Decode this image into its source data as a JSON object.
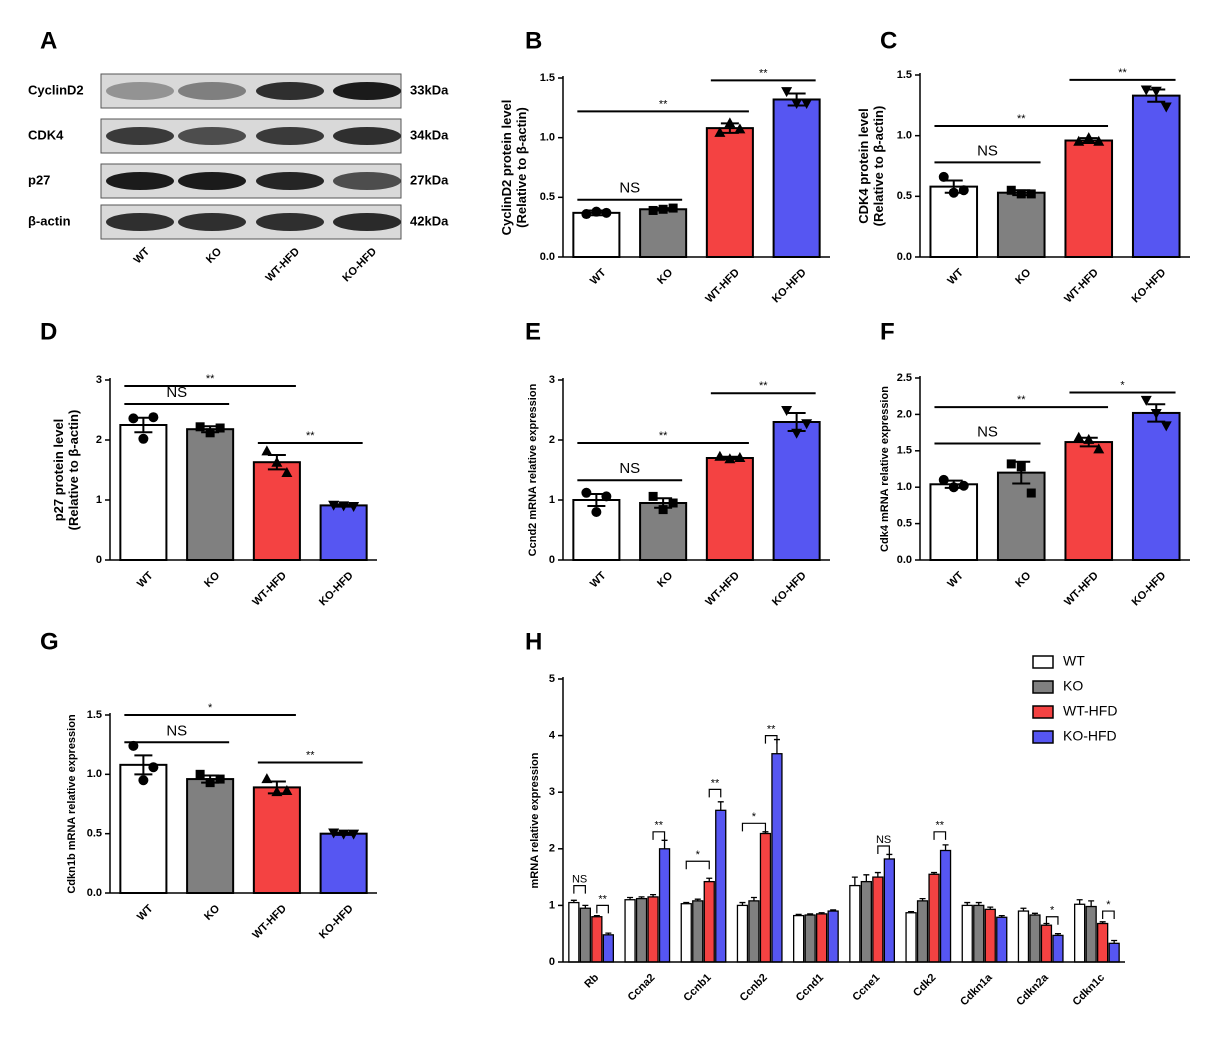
{
  "blot": {
    "panel": "A",
    "rows": [
      "CyclinD2",
      "CDK4",
      "p27",
      "β-actin"
    ],
    "sizes": [
      "33kDa",
      "34kDa",
      "27kDa",
      "42kDa"
    ],
    "lanes": [
      "WT",
      "KO",
      "WT-HFD",
      "KO-HFD"
    ]
  },
  "chart_data": [
    {
      "type": "bar",
      "panel": "B",
      "ylabel": [
        "CyclinD2 protein level",
        "(Relative to β-actin)"
      ],
      "categories": [
        "WT",
        "KO",
        "WT-HFD",
        "KO-HFD"
      ],
      "colors": [
        "#ffffff",
        "#808080",
        "#f44242",
        "#5656f2"
      ],
      "markers": [
        "circle",
        "square",
        "triangle",
        "triangle-down"
      ],
      "values": [
        0.37,
        0.4,
        1.08,
        1.32
      ],
      "errors": [
        0.02,
        0.01,
        0.04,
        0.05
      ],
      "points": [
        [
          0.36,
          0.38,
          0.37
        ],
        [
          0.39,
          0.4,
          0.41
        ],
        [
          1.04,
          1.12,
          1.07
        ],
        [
          1.39,
          1.29,
          1.29
        ]
      ],
      "ylim": [
        0,
        1.5
      ],
      "yticks": [
        {
          "value": 0,
          "label": "0.0"
        },
        0.5,
        {
          "value": 1,
          "label": "1.0"
        },
        1.5
      ],
      "annotations": [
        {
          "label": "NS",
          "from": 0,
          "to": 1,
          "y": 0.48
        },
        {
          "label": "**",
          "from": 0,
          "to": 2,
          "y": 1.22
        },
        {
          "label": "**",
          "from": 2,
          "to": 3,
          "y": 1.48
        }
      ]
    },
    {
      "type": "bar",
      "panel": "C",
      "ylabel": [
        "CDK4 protein level",
        "(Relative to β-actin)"
      ],
      "categories": [
        "WT",
        "KO",
        "WT-HFD",
        "KO-HFD"
      ],
      "colors": [
        "#ffffff",
        "#808080",
        "#f44242",
        "#5656f2"
      ],
      "markers": [
        "circle",
        "square",
        "triangle",
        "triangle-down"
      ],
      "values": [
        0.58,
        0.53,
        0.96,
        1.33
      ],
      "errors": [
        0.05,
        0.02,
        0.02,
        0.05
      ],
      "points": [
        [
          0.66,
          0.53,
          0.55
        ],
        [
          0.55,
          0.52,
          0.52
        ],
        [
          0.95,
          0.98,
          0.95
        ],
        [
          1.38,
          1.37,
          1.24
        ]
      ],
      "ylim": [
        0,
        1.5
      ],
      "yticks": [
        {
          "value": 0,
          "label": "0.0"
        },
        0.5,
        {
          "value": 1,
          "label": "1.0"
        },
        1.5
      ],
      "annotations": [
        {
          "label": "NS",
          "from": 0,
          "to": 1,
          "y": 0.78
        },
        {
          "label": "**",
          "from": 0,
          "to": 2,
          "y": 1.08
        },
        {
          "label": "**",
          "from": 2,
          "to": 3,
          "y": 1.46
        }
      ]
    },
    {
      "type": "bar",
      "panel": "D",
      "ylabel": [
        "p27 protein level",
        "(Relative to β-actin)"
      ],
      "categories": [
        "WT",
        "KO",
        "WT-HFD",
        "KO-HFD"
      ],
      "colors": [
        "#ffffff",
        "#808080",
        "#f44242",
        "#5656f2"
      ],
      "markers": [
        "circle",
        "square",
        "triangle",
        "triangle-down"
      ],
      "values": [
        2.25,
        2.18,
        1.63,
        0.91
      ],
      "errors": [
        0.12,
        0.05,
        0.12,
        0.02
      ],
      "points": [
        [
          2.36,
          2.02,
          2.38
        ],
        [
          2.22,
          2.12,
          2.2
        ],
        [
          1.81,
          1.62,
          1.45
        ],
        [
          0.92,
          0.91,
          0.9
        ]
      ],
      "ylim": [
        0,
        3
      ],
      "yticks": [
        0,
        1,
        2,
        3
      ],
      "annotations": [
        {
          "label": "NS",
          "from": 0,
          "to": 1,
          "y": 2.6
        },
        {
          "label": "**",
          "from": 0,
          "to": 2,
          "y": 2.9
        },
        {
          "label": "**",
          "from": 2,
          "to": 3,
          "y": 1.95
        }
      ]
    },
    {
      "type": "bar",
      "panel": "E",
      "ylabel": [
        "Ccnd2 mRNA relative expression"
      ],
      "categories": [
        "WT",
        "KO",
        "WT-HFD",
        "KO-HFD"
      ],
      "colors": [
        "#ffffff",
        "#808080",
        "#f44242",
        "#5656f2"
      ],
      "markers": [
        "circle",
        "square",
        "triangle",
        "triangle-down"
      ],
      "values": [
        1.0,
        0.95,
        1.7,
        2.3
      ],
      "errors": [
        0.1,
        0.08,
        0.02,
        0.15
      ],
      "points": [
        [
          1.12,
          0.8,
          1.06
        ],
        [
          1.06,
          0.84,
          0.95
        ],
        [
          1.72,
          1.68,
          1.7
        ],
        [
          2.5,
          2.12,
          2.28
        ]
      ],
      "ylim": [
        0,
        3
      ],
      "yticks": [
        0,
        1,
        2,
        3
      ],
      "annotations": [
        {
          "label": "NS",
          "from": 0,
          "to": 1,
          "y": 1.33
        },
        {
          "label": "**",
          "from": 0,
          "to": 2,
          "y": 1.95
        },
        {
          "label": "**",
          "from": 2,
          "to": 3,
          "y": 2.78
        }
      ]
    },
    {
      "type": "bar",
      "panel": "F",
      "ylabel": [
        "Cdk4 mRNA relative expression"
      ],
      "categories": [
        "WT",
        "KO",
        "WT-HFD",
        "KO-HFD"
      ],
      "colors": [
        "#ffffff",
        "#808080",
        "#f44242",
        "#5656f2"
      ],
      "markers": [
        "circle",
        "square",
        "triangle",
        "triangle-down"
      ],
      "values": [
        1.04,
        1.2,
        1.62,
        2.02
      ],
      "errors": [
        0.05,
        0.15,
        0.06,
        0.12
      ],
      "points": [
        [
          1.1,
          1.0,
          1.02
        ],
        [
          1.32,
          1.28,
          0.92
        ],
        [
          1.68,
          1.65,
          1.52
        ],
        [
          2.2,
          2.02,
          1.85
        ]
      ],
      "ylim": [
        0,
        2.5
      ],
      "yticks": [
        {
          "value": 0,
          "label": "0.0"
        },
        0.5,
        {
          "value": 1,
          "label": "1.0"
        },
        1.5,
        {
          "value": 2,
          "label": "2.0"
        },
        2.5
      ],
      "annotations": [
        {
          "label": "NS",
          "from": 0,
          "to": 1,
          "y": 1.6
        },
        {
          "label": "**",
          "from": 0,
          "to": 2,
          "y": 2.1
        },
        {
          "label": "*",
          "from": 2,
          "to": 3,
          "y": 2.3
        }
      ]
    },
    {
      "type": "bar",
      "panel": "G",
      "ylabel": [
        "Cdkn1b mRNA relative expression"
      ],
      "categories": [
        "WT",
        "KO",
        "WT-HFD",
        "KO-HFD"
      ],
      "colors": [
        "#ffffff",
        "#808080",
        "#f44242",
        "#5656f2"
      ],
      "markers": [
        "circle",
        "square",
        "triangle",
        "triangle-down"
      ],
      "values": [
        1.08,
        0.96,
        0.89,
        0.5
      ],
      "errors": [
        0.08,
        0.03,
        0.05,
        0.01
      ],
      "points": [
        [
          1.24,
          0.95,
          1.06
        ],
        [
          1.0,
          0.93,
          0.96
        ],
        [
          0.96,
          0.85,
          0.86
        ],
        [
          0.51,
          0.5,
          0.5
        ]
      ],
      "ylim": [
        0,
        1.5
      ],
      "yticks": [
        {
          "value": 0,
          "label": "0.0"
        },
        0.5,
        {
          "value": 1,
          "label": "1.0"
        },
        1.5
      ],
      "annotations": [
        {
          "label": "NS",
          "from": 0,
          "to": 1,
          "y": 1.27
        },
        {
          "label": "*",
          "from": 0,
          "to": 2,
          "y": 1.5
        },
        {
          "label": "**",
          "from": 2,
          "to": 3,
          "y": 1.1
        }
      ]
    },
    {
      "type": "grouped-bar",
      "panel": "H",
      "ylabel": [
        "mRNA relative expression"
      ],
      "categories": [
        "Rb",
        "Ccna2",
        "Ccnb1",
        "Ccnb2",
        "Ccnd1",
        "Ccne1",
        "Cdk2",
        "Cdkn1a",
        "Cdkn2a",
        "Cdkn1c"
      ],
      "series": [
        {
          "name": "WT",
          "color": "#ffffff",
          "values": [
            1.05,
            1.1,
            1.03,
            1.0,
            0.82,
            1.35,
            0.87,
            1.0,
            0.9,
            1.02
          ],
          "errors": [
            0.04,
            0.04,
            0.02,
            0.05,
            0.02,
            0.15,
            0.02,
            0.05,
            0.05,
            0.08
          ]
        },
        {
          "name": "KO",
          "color": "#808080",
          "values": [
            0.95,
            1.12,
            1.08,
            1.08,
            0.83,
            1.42,
            1.08,
            1.0,
            0.83,
            0.98
          ],
          "errors": [
            0.05,
            0.03,
            0.03,
            0.06,
            0.02,
            0.12,
            0.04,
            0.05,
            0.03,
            0.1
          ]
        },
        {
          "name": "WT-HFD",
          "color": "#f44242",
          "values": [
            0.8,
            1.15,
            1.42,
            2.27,
            0.85,
            1.5,
            1.55,
            0.93,
            0.65,
            0.68
          ],
          "errors": [
            0.02,
            0.04,
            0.06,
            0.03,
            0.02,
            0.08,
            0.03,
            0.04,
            0.03,
            0.03
          ]
        },
        {
          "name": "KO-HFD",
          "color": "#5656f2",
          "values": [
            0.48,
            2.0,
            2.68,
            3.68,
            0.9,
            1.82,
            1.97,
            0.79,
            0.47,
            0.33
          ],
          "errors": [
            0.03,
            0.15,
            0.15,
            0.25,
            0.02,
            0.08,
            0.1,
            0.03,
            0.03,
            0.05
          ]
        }
      ],
      "ylim": [
        0,
        5
      ],
      "yticks": [
        0,
        1,
        2,
        3,
        4,
        5
      ],
      "legend": "top-right",
      "annotations": [
        {
          "label": "NS",
          "category": 0,
          "from": 0,
          "to": 1,
          "y": 1.35
        },
        {
          "label": "**",
          "category": 0,
          "from": 2,
          "to": 3,
          "y": 1.0
        },
        {
          "label": "**",
          "category": 1,
          "from": 2,
          "to": 3,
          "y": 2.3
        },
        {
          "label": "*",
          "category": 2,
          "from": 0,
          "to": 2,
          "y": 1.78
        },
        {
          "label": "**",
          "category": 2,
          "from": 2,
          "to": 3,
          "y": 3.05
        },
        {
          "label": "*",
          "category": 3,
          "from": 0,
          "to": 2,
          "y": 2.45
        },
        {
          "label": "**",
          "category": 3,
          "from": 2,
          "to": 3,
          "y": 4.0
        },
        {
          "label": "NS",
          "category": 5,
          "from": 2,
          "to": 3,
          "y": 2.05
        },
        {
          "label": "**",
          "category": 6,
          "from": 2,
          "to": 3,
          "y": 2.3
        },
        {
          "label": "*",
          "category": 8,
          "from": 2,
          "to": 3,
          "y": 0.8
        },
        {
          "label": "*",
          "category": 9,
          "from": 2,
          "to": 3,
          "y": 0.9
        }
      ]
    }
  ]
}
